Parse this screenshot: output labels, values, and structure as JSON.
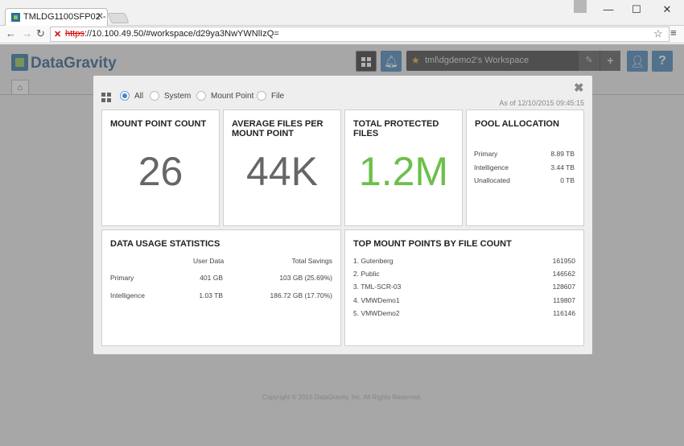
{
  "browser": {
    "tab_title": "TMLDG1100SFP02 -",
    "url_scheme": "https",
    "url_rest": "://10.100.49.50/#workspace/d29ya3NwYWNlIzQ="
  },
  "app": {
    "logo_text": "DataGravity",
    "workspace_name": "tml\\dgdemo2's Workspace",
    "copyright": "Copyright © 2015 DataGravity, Inc. All Rights Reserved."
  },
  "modal": {
    "filters": [
      "All",
      "System",
      "Mount Point",
      "File"
    ],
    "selected_filter": "All",
    "as_of": "As of 12/10/2015 09:45:15",
    "mount_point_count": {
      "title": "MOUNT POINT COUNT",
      "value": "26"
    },
    "avg_files": {
      "title": "AVERAGE FILES PER MOUNT POINT",
      "value": "44K"
    },
    "total_protected": {
      "title": "TOTAL PROTECTED FILES",
      "value": "1.2M"
    },
    "pool_allocation": {
      "title": "POOL ALLOCATION",
      "rows": [
        {
          "label": "Primary",
          "value": "8.89 TB"
        },
        {
          "label": "Intelligence",
          "value": "3.44 TB"
        },
        {
          "label": "Unallocated",
          "value": "0 TB"
        }
      ]
    },
    "data_usage": {
      "title": "DATA USAGE STATISTICS",
      "col_user": "User Data",
      "col_savings": "Total Savings",
      "rows": [
        {
          "label": "Primary",
          "user": "401 GB",
          "savings": "103 GB (25.69%)"
        },
        {
          "label": "Intelligence",
          "user": "1.03 TB",
          "savings": "186.72 GB (17.70%)"
        }
      ]
    },
    "top_mount_points": {
      "title": "TOP MOUNT POINTS BY FILE COUNT",
      "rows": [
        {
          "name": "1. Gutenberg",
          "count": "161950"
        },
        {
          "name": "2. Public",
          "count": "146562"
        },
        {
          "name": "3. TML-SCR-03",
          "count": "128607"
        },
        {
          "name": "4. VMWDemo1",
          "count": "119807"
        },
        {
          "name": "5. VMWDemo2",
          "count": "116146"
        }
      ]
    }
  },
  "colors": {
    "accent_blue": "#2d6b9c",
    "header_button": "#3f7fb4",
    "big_number_gray": "#666666",
    "big_number_green": "#6cbf4a"
  }
}
